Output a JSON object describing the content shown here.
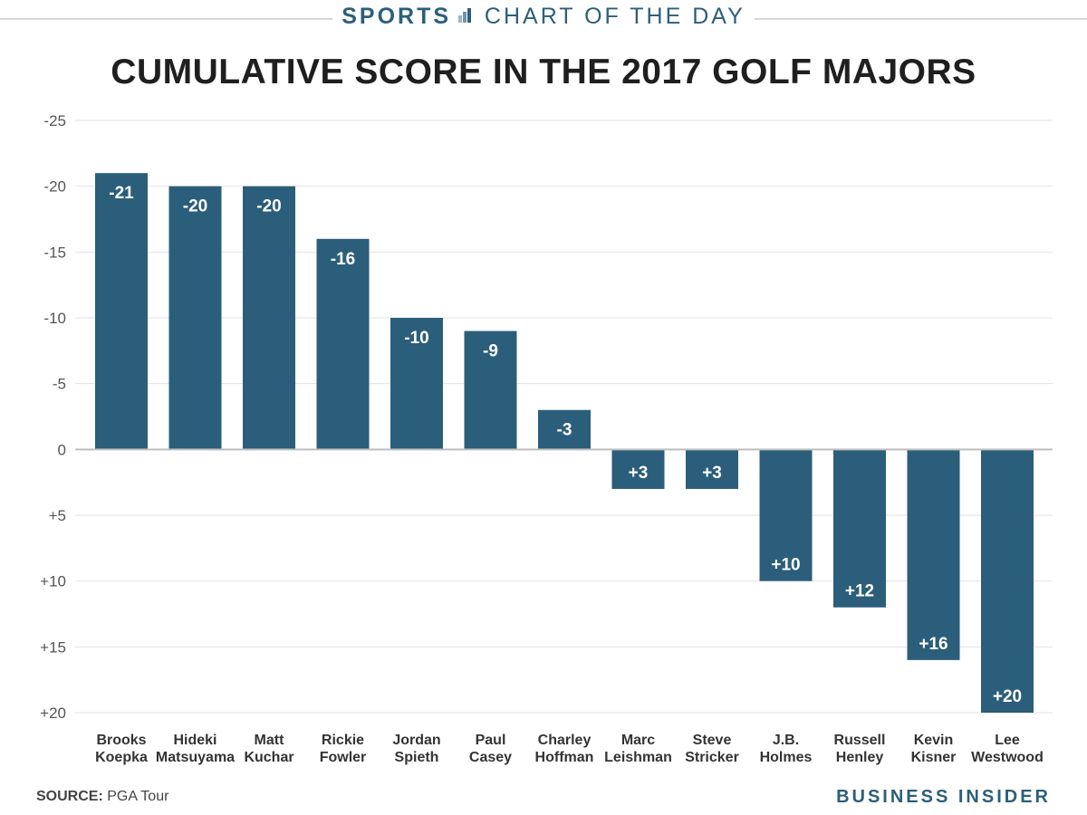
{
  "header": {
    "sports_label": "SPORTS",
    "chart_of_day_label": "CHART OF THE DAY"
  },
  "colors": {
    "bar": "#2b5e7a",
    "brand": "#2c5f7a",
    "grid": "#e2e2e2",
    "axis": "#bdbdbd",
    "tick_text": "#555555"
  },
  "chart_data": {
    "type": "bar",
    "title": "CUMULATIVE SCORE IN THE 2017 GOLF MAJORS",
    "xlabel": "",
    "ylabel": "",
    "ylim": [
      -25,
      20
    ],
    "y_inverted": true,
    "grid": true,
    "yticks": [
      -25,
      -20,
      -15,
      -10,
      -5,
      0,
      5,
      10,
      15,
      20
    ],
    "ytick_labels": [
      "-25",
      "-20",
      "-15",
      "-10",
      "-5",
      "0",
      "+5",
      "+10",
      "+15",
      "+20"
    ],
    "categories": [
      [
        "Brooks",
        "Koepka"
      ],
      [
        "Hideki",
        "Matsuyama"
      ],
      [
        "Matt",
        "Kuchar"
      ],
      [
        "Rickie",
        "Fowler"
      ],
      [
        "Jordan",
        "Spieth"
      ],
      [
        "Paul",
        "Casey"
      ],
      [
        "Charley",
        "Hoffman"
      ],
      [
        "Marc",
        "Leishman"
      ],
      [
        "Steve",
        "Stricker"
      ],
      [
        "J.B.",
        "Holmes"
      ],
      [
        "Russell",
        "Henley"
      ],
      [
        "Kevin",
        "Kisner"
      ],
      [
        "Lee",
        "Westwood"
      ]
    ],
    "values": [
      -21,
      -20,
      -20,
      -16,
      -10,
      -9,
      -3,
      3,
      3,
      10,
      12,
      16,
      20
    ],
    "value_labels": [
      "-21",
      "-20",
      "-20",
      "-16",
      "-10",
      "-9",
      "-3",
      "+3",
      "+3",
      "+10",
      "+12",
      "+16",
      "+20"
    ]
  },
  "footer": {
    "source_label": "SOURCE:",
    "source_value": "PGA Tour",
    "brand": "BUSINESS INSIDER"
  }
}
